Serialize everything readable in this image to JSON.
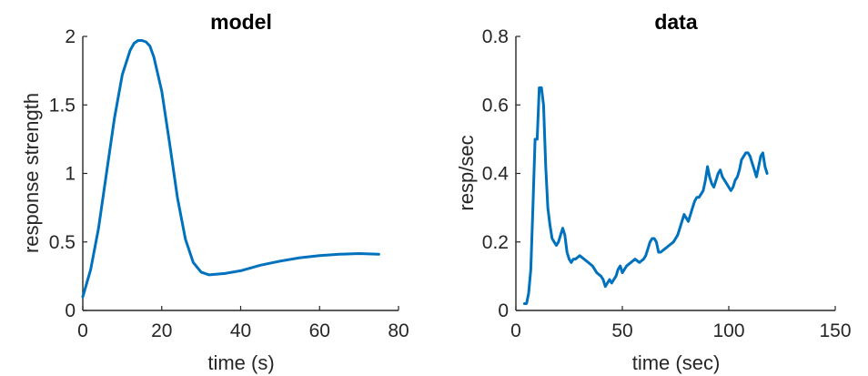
{
  "chart_data": [
    {
      "type": "line",
      "title": "model",
      "xlabel": "time (s)",
      "ylabel": "response strength",
      "xlim": [
        0,
        80
      ],
      "ylim": [
        0,
        2
      ],
      "xticks": [
        0,
        20,
        40,
        60,
        80
      ],
      "yticks": [
        0,
        0.5,
        1,
        1.5,
        2
      ],
      "series_color": "#0072BD",
      "series": [
        {
          "x": [
            0,
            2,
            4,
            6,
            8,
            10,
            12,
            13,
            14,
            15,
            16,
            17,
            18,
            20,
            22,
            24,
            26,
            28,
            30,
            32,
            34,
            36,
            38,
            40,
            45,
            50,
            55,
            60,
            65,
            70,
            75
          ],
          "y": [
            0.1,
            0.3,
            0.6,
            1.0,
            1.4,
            1.72,
            1.9,
            1.95,
            1.97,
            1.97,
            1.96,
            1.93,
            1.85,
            1.6,
            1.22,
            0.82,
            0.52,
            0.35,
            0.28,
            0.26,
            0.265,
            0.27,
            0.28,
            0.29,
            0.33,
            0.36,
            0.385,
            0.4,
            0.41,
            0.415,
            0.41
          ]
        }
      ]
    },
    {
      "type": "line",
      "title": "data",
      "xlabel": "time (sec)",
      "ylabel": "resp/sec",
      "xlim": [
        0,
        150
      ],
      "ylim": [
        0,
        0.8
      ],
      "xticks": [
        0,
        50,
        100,
        150
      ],
      "yticks": [
        0,
        0.2,
        0.4,
        0.6,
        0.8
      ],
      "series_color": "#0072BD",
      "series": [
        {
          "x": [
            4,
            5,
            6,
            7,
            8,
            9,
            10,
            11,
            12,
            13,
            14,
            15,
            16,
            17,
            18,
            19,
            20,
            21,
            22,
            23,
            24,
            25,
            26,
            27,
            28,
            30,
            32,
            34,
            36,
            38,
            40,
            41,
            42,
            43,
            44,
            45,
            46,
            47,
            48,
            49,
            50,
            52,
            54,
            56,
            58,
            60,
            61,
            62,
            63,
            64,
            65,
            66,
            67,
            68,
            70,
            72,
            74,
            75,
            76,
            77,
            78,
            79,
            80,
            81,
            82,
            83,
            84,
            85,
            86,
            87,
            88,
            89,
            90,
            91,
            92,
            93,
            94,
            95,
            96,
            97,
            98,
            99,
            100,
            101,
            102,
            103,
            104,
            105,
            106,
            107,
            108,
            109,
            110,
            111,
            112,
            113,
            114,
            115,
            116,
            117,
            118
          ],
          "y": [
            0.02,
            0.02,
            0.05,
            0.12,
            0.3,
            0.5,
            0.5,
            0.65,
            0.65,
            0.6,
            0.42,
            0.3,
            0.25,
            0.21,
            0.2,
            0.19,
            0.2,
            0.22,
            0.24,
            0.22,
            0.17,
            0.15,
            0.14,
            0.15,
            0.15,
            0.16,
            0.15,
            0.14,
            0.13,
            0.11,
            0.1,
            0.09,
            0.07,
            0.08,
            0.09,
            0.08,
            0.09,
            0.1,
            0.12,
            0.13,
            0.11,
            0.13,
            0.14,
            0.15,
            0.14,
            0.15,
            0.16,
            0.18,
            0.2,
            0.21,
            0.21,
            0.2,
            0.17,
            0.17,
            0.18,
            0.19,
            0.2,
            0.21,
            0.22,
            0.24,
            0.26,
            0.28,
            0.27,
            0.26,
            0.28,
            0.3,
            0.32,
            0.33,
            0.33,
            0.34,
            0.35,
            0.38,
            0.42,
            0.39,
            0.37,
            0.36,
            0.38,
            0.4,
            0.41,
            0.39,
            0.38,
            0.37,
            0.36,
            0.35,
            0.36,
            0.38,
            0.39,
            0.41,
            0.44,
            0.45,
            0.46,
            0.46,
            0.45,
            0.43,
            0.41,
            0.39,
            0.42,
            0.45,
            0.46,
            0.42,
            0.4
          ]
        }
      ]
    }
  ]
}
